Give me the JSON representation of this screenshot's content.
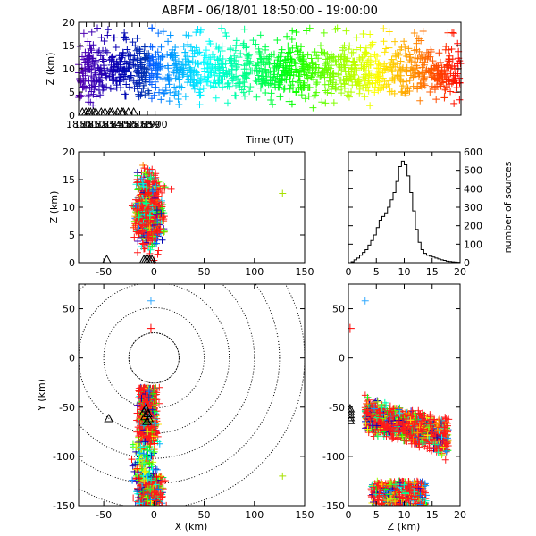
{
  "title": "ABFM - 06/18/01 18:50:00 - 19:00:00",
  "chart_data": [
    {
      "id": "time-height",
      "type": "scatter",
      "xlabel": "Time (UT)",
      "ylabel": "Z (km)",
      "xlim": [
        1850,
        1900
      ],
      "ylim": [
        0,
        20
      ],
      "xticks": [
        "1850",
        "1851",
        "1852",
        "1853",
        "1854",
        "1855",
        "1856",
        "1857",
        "1858",
        "1859",
        "1900"
      ],
      "yticks": [
        0,
        5,
        10,
        15,
        20
      ],
      "color_by_time": true,
      "station_markers_x": [
        1850.5,
        1850.95,
        1851.3,
        1851.55,
        1851.95,
        1852.25,
        1852.95,
        1853.45,
        1854.1,
        1854.4,
        1855.1,
        1855.65,
        1855.85,
        1856.5,
        1857.2
      ]
    },
    {
      "id": "x-height",
      "type": "scatter",
      "xlabel": "",
      "ylabel": "Z (km)",
      "xlim": [
        -75,
        150
      ],
      "ylim": [
        0,
        20
      ],
      "xticks": [
        -50,
        0,
        50,
        100,
        150
      ],
      "yticks": [
        0,
        5,
        10,
        15,
        20
      ],
      "main_cluster_x": [
        -10,
        10
      ],
      "outlier": {
        "x": 128,
        "z": 12.5
      }
    },
    {
      "id": "height-histogram",
      "type": "line",
      "ylabel": "number of sources",
      "xlim": [
        0,
        20
      ],
      "ylim": [
        0,
        600
      ],
      "xticks": [
        0,
        5,
        10,
        15,
        20
      ],
      "yticks": [
        0,
        100,
        200,
        300,
        400,
        500,
        600
      ],
      "z": [
        0,
        0.5,
        1,
        1.5,
        2,
        2.5,
        3,
        3.5,
        4,
        4.5,
        5,
        5.5,
        6,
        6.5,
        7,
        7.5,
        8,
        8.5,
        9,
        9.5,
        10,
        10.5,
        11,
        11.5,
        12,
        12.5,
        13,
        13.5,
        14,
        14.5,
        15,
        15.5,
        16,
        16.5,
        17,
        17.5,
        18,
        18.5,
        19,
        19.5,
        20
      ],
      "counts": [
        0,
        5,
        15,
        25,
        40,
        55,
        70,
        95,
        120,
        150,
        190,
        230,
        250,
        270,
        300,
        340,
        380,
        440,
        520,
        550,
        530,
        470,
        380,
        280,
        180,
        110,
        70,
        50,
        40,
        35,
        30,
        25,
        20,
        15,
        12,
        8,
        6,
        4,
        3,
        2,
        1
      ]
    },
    {
      "id": "plan-view",
      "type": "scatter",
      "xlabel": "X (km)",
      "ylabel": "Y (km)",
      "xlim": [
        -75,
        150
      ],
      "ylim": [
        -150,
        75
      ],
      "xticks": [
        -50,
        0,
        50,
        100,
        150
      ],
      "yticks": [
        -150,
        -100,
        -50,
        0,
        50
      ],
      "range_rings_km": [
        25,
        50,
        75,
        100,
        125,
        150
      ],
      "red_cross": {
        "x": -3,
        "y": 30
      },
      "station_triangles": [
        {
          "x": -45,
          "y": -62
        },
        {
          "x": -8,
          "y": -52
        },
        {
          "x": -10,
          "y": -55
        },
        {
          "x": -6,
          "y": -57
        },
        {
          "x": -9,
          "y": -60
        },
        {
          "x": -5,
          "y": -62
        },
        {
          "x": -7,
          "y": -65
        }
      ]
    },
    {
      "id": "z-y",
      "type": "scatter",
      "xlabel": "Z (km)",
      "ylabel": "",
      "xlim": [
        0,
        20
      ],
      "ylim": [
        -150,
        75
      ],
      "xticks": [
        0,
        5,
        10,
        15,
        20
      ],
      "yticks": [
        -150,
        -100,
        -50,
        0,
        50
      ],
      "red_cross": {
        "z": 0.3,
        "y": 30
      }
    }
  ]
}
